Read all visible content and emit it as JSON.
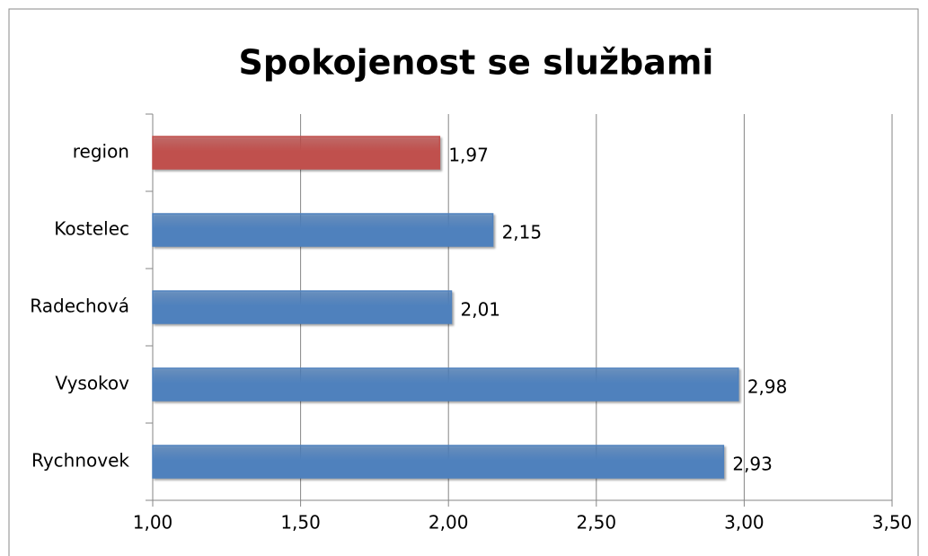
{
  "chart_data": {
    "type": "hbar",
    "title": "Spokojenost se službami",
    "categories": [
      "region",
      "Kostelec",
      "Radechová",
      "Vysokov",
      "Rychnovek"
    ],
    "values": [
      1.97,
      2.15,
      2.01,
      2.98,
      2.93
    ],
    "value_labels": [
      "1,97",
      "2,15",
      "2,01",
      "2,98",
      "2,93"
    ],
    "colors": [
      "#c0504d",
      "#4f81bd",
      "#4f81bd",
      "#4f81bd",
      "#4f81bd"
    ],
    "xlim": [
      1,
      3.5
    ],
    "xticks": [
      {
        "value": 1,
        "label": "1,00"
      },
      {
        "value": 1.5,
        "label": "1,50"
      },
      {
        "value": 2,
        "label": "2,00"
      },
      {
        "value": 2.5,
        "label": "2,50"
      },
      {
        "value": 3,
        "label": "3,00"
      },
      {
        "value": 3.5,
        "label": "3,50"
      }
    ],
    "grid": true
  }
}
